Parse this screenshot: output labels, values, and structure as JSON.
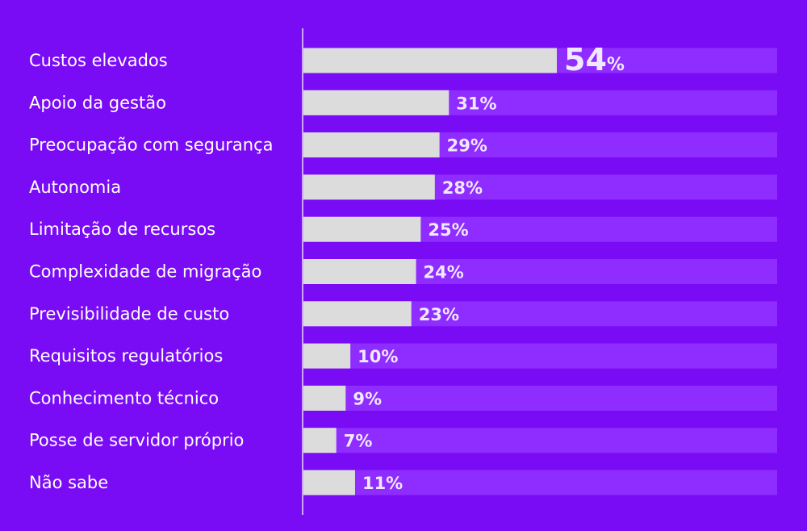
{
  "chart_data": {
    "type": "bar",
    "orientation": "horizontal",
    "categories": [
      "Custos elevados",
      "Apoio da gestão",
      "Preocupação com segurança",
      "Autonomia",
      "Limitação de recursos",
      "Complexidade de migração",
      "Previsibilidade de custo",
      "Requisitos regulatórios",
      "Conhecimento técnico",
      "Posse de servidor próprio",
      "Não sabe"
    ],
    "values": [
      54,
      31,
      29,
      28,
      25,
      24,
      23,
      10,
      9,
      7,
      11
    ],
    "value_labels": [
      "54",
      "31%",
      "29%",
      "28%",
      "25%",
      "24%",
      "23%",
      "10%",
      "9%",
      "7%",
      "11%"
    ],
    "highlight_suffix": "%",
    "xlim": [
      0,
      100
    ],
    "grid": false,
    "legend": "none",
    "colors": {
      "background": "#7a0cf5",
      "bar": "#dcdcdc",
      "track": "#8f2cff",
      "axis": "#e6d9ff",
      "text": "#ffffff",
      "value_text": "#f0e8ff"
    }
  }
}
